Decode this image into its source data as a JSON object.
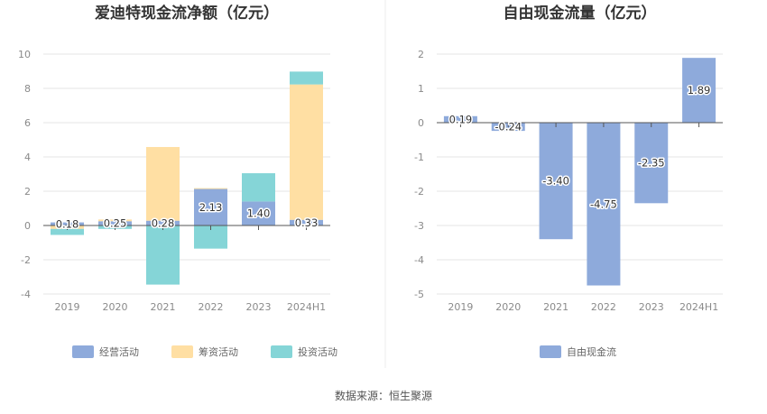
{
  "source": "数据来源：恒生聚源",
  "colors": {
    "operating": "#8EAADB",
    "financing": "#FFDFA3",
    "investing": "#85D5D7",
    "fcf": "#8EAADB",
    "grid": "#e6e6e6",
    "axis": "#555555"
  },
  "chart_data": [
    {
      "type": "bar",
      "stacked": true,
      "title": "爱迪特现金流净额（亿元）",
      "categories": [
        "2019",
        "2020",
        "2021",
        "2022",
        "2023",
        "2024H1"
      ],
      "ylim": [
        -4,
        10
      ],
      "yticks": [
        -4,
        -2,
        0,
        2,
        4,
        6,
        8,
        10
      ],
      "grid": true,
      "legend": "bottom",
      "series": [
        {
          "name": "经营活动",
          "values": [
            0.18,
            0.25,
            0.28,
            2.13,
            1.4,
            0.33
          ]
        },
        {
          "name": "筹资活动",
          "values": [
            -0.2,
            0.1,
            4.3,
            0.05,
            0.0,
            7.9
          ]
        },
        {
          "name": "投资活动",
          "values": [
            -0.35,
            -0.2,
            -3.45,
            -1.35,
            1.65,
            0.75
          ]
        }
      ],
      "data_labels": [
        "0.18",
        "0.25",
        "0.28",
        "2.13",
        "1.40",
        "0.33"
      ]
    },
    {
      "type": "bar",
      "title": "自由现金流量（亿元）",
      "categories": [
        "2019",
        "2020",
        "2021",
        "2022",
        "2023",
        "2024H1"
      ],
      "ylim": [
        -5,
        2
      ],
      "yticks": [
        -5,
        -4,
        -3,
        -2,
        -1,
        0,
        1,
        2
      ],
      "grid": true,
      "legend": "bottom",
      "series": [
        {
          "name": "自由现金流",
          "values": [
            0.19,
            -0.24,
            -3.4,
            -4.75,
            -2.35,
            1.89
          ]
        }
      ],
      "data_labels": [
        "0.19",
        "-0.24",
        "-3.40",
        "-4.75",
        "-2.35",
        "1.89"
      ]
    }
  ]
}
